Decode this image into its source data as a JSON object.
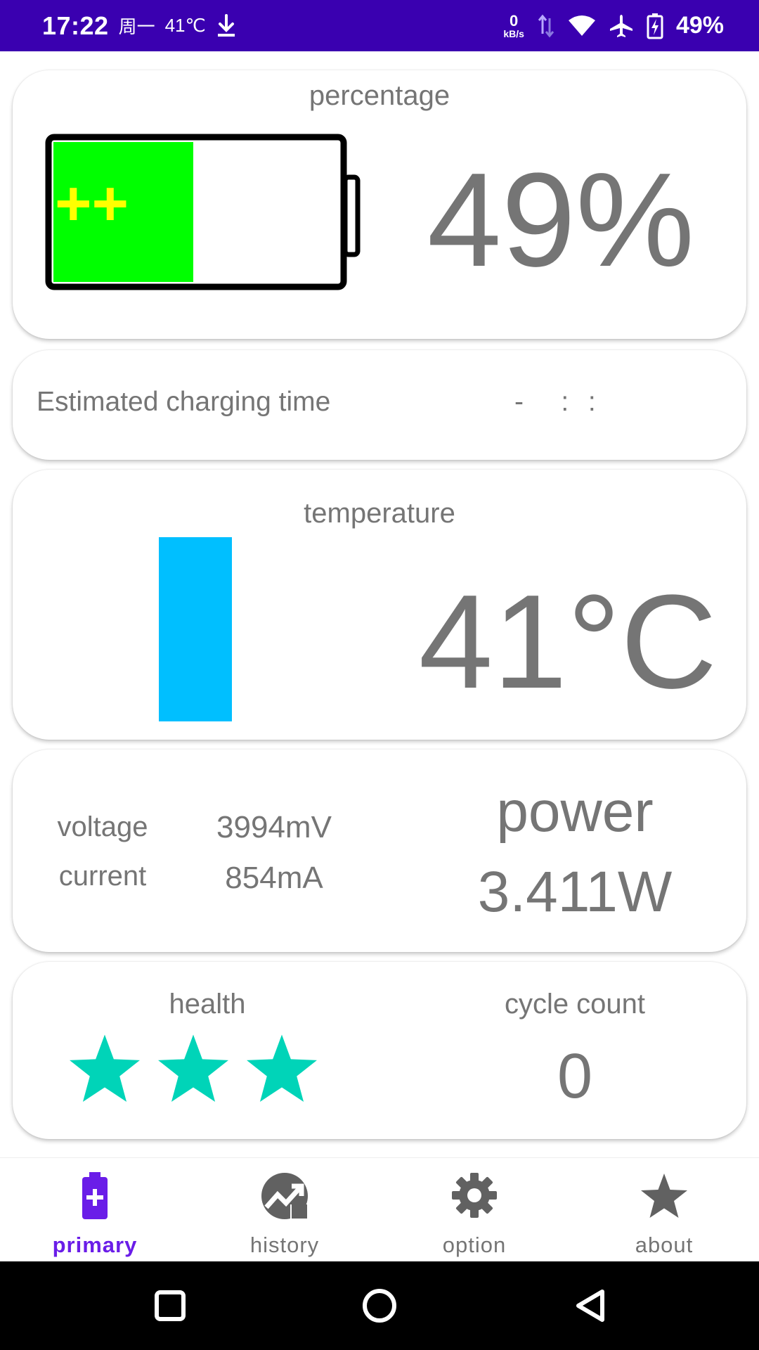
{
  "status_bar": {
    "time": "17:22",
    "day": "周一",
    "temp": "41℃",
    "net_speed_value": "0",
    "net_speed_unit": "kB/s",
    "battery_text": "49%",
    "icons": [
      "download-icon",
      "data-arrows-icon",
      "wifi-icon",
      "airplane-icon",
      "battery-charging-icon"
    ]
  },
  "percentage_card": {
    "title": "percentage",
    "value": "49%",
    "charge_level": 0.49,
    "charging_glyph": "++",
    "fill_color": "#00ff00",
    "glyph_color": "#ffff00"
  },
  "charge_card": {
    "label": "Estimated charging time",
    "time": "-    :  :"
  },
  "temperature_card": {
    "title": "temperature",
    "value": "41°C",
    "bar_color": "#00bfff"
  },
  "power_card": {
    "voltage_label": "voltage",
    "voltage_value": "3994mV",
    "current_label": "current",
    "current_value": "854mA",
    "power_label": "power",
    "power_value": "3.411W"
  },
  "health_card": {
    "health_label": "health",
    "stars": 3,
    "star_color": "#00d4b8",
    "cycle_label": "cycle count",
    "cycle_value": "0"
  },
  "bottom_nav": {
    "items": [
      {
        "label": "primary",
        "icon": "battery-plus-icon",
        "active": true
      },
      {
        "label": "history",
        "icon": "trend-chart-icon",
        "active": false
      },
      {
        "label": "option",
        "icon": "gear-icon",
        "active": false
      },
      {
        "label": "about",
        "icon": "star-icon",
        "active": false
      }
    ],
    "active_color": "#6a1de8"
  },
  "system_nav": {
    "icons": [
      "recents-square-icon",
      "home-circle-icon",
      "back-triangle-icon"
    ]
  }
}
